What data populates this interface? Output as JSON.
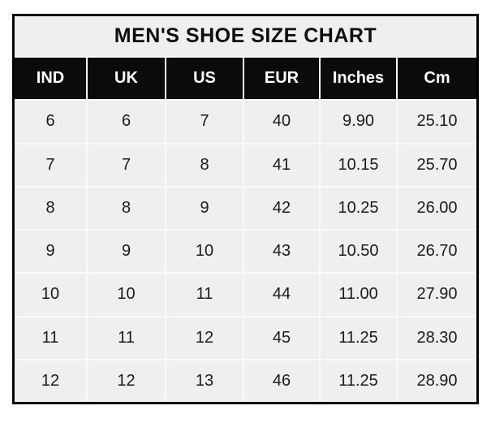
{
  "chart_data": {
    "type": "table",
    "title": "MEN'S SHOE SIZE CHART",
    "columns": [
      "IND",
      "UK",
      "US",
      "EUR",
      "Inches",
      "Cm"
    ],
    "rows": [
      [
        "6",
        "6",
        "7",
        "40",
        "9.90",
        "25.10"
      ],
      [
        "7",
        "7",
        "8",
        "41",
        "10.15",
        "25.70"
      ],
      [
        "8",
        "8",
        "9",
        "42",
        "10.25",
        "26.00"
      ],
      [
        "9",
        "9",
        "10",
        "43",
        "10.50",
        "26.70"
      ],
      [
        "10",
        "10",
        "11",
        "44",
        "11.00",
        "27.90"
      ],
      [
        "11",
        "11",
        "12",
        "45",
        "11.25",
        "28.30"
      ],
      [
        "12",
        "12",
        "13",
        "46",
        "11.25",
        "28.90"
      ]
    ]
  },
  "colors": {
    "outer_border": "#000000",
    "title_background": "#efeff0",
    "header_background": "#0b0b0b",
    "header_text": "#ffffff",
    "cell_background": "#efeff0",
    "cell_separator": "#fafafa",
    "body_text": "#1b1b1b",
    "page_background": "#ffffff"
  }
}
